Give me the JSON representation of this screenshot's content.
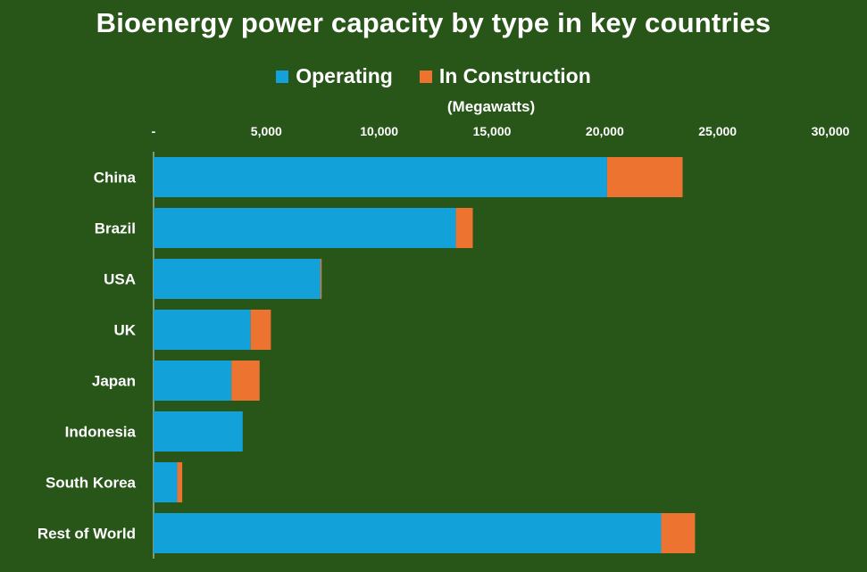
{
  "chart_data": {
    "type": "bar",
    "orientation": "horizontal",
    "stacked": true,
    "title": "Bioenergy power capacity by type in key countries",
    "unit_label": "(Megawatts)",
    "categories": [
      "China",
      "Brazil",
      "USA",
      "UK",
      "Japan",
      "Indonesia",
      "South Korea",
      "Rest of World"
    ],
    "series": [
      {
        "name": "Operating",
        "color": "#12A1D9",
        "values": [
          20100,
          13400,
          7400,
          4300,
          3450,
          3950,
          1050,
          22500
        ]
      },
      {
        "name": "In Construction",
        "color": "#EC7330",
        "values": [
          3350,
          750,
          50,
          900,
          1250,
          0,
          220,
          1500
        ]
      }
    ],
    "xlim": [
      0,
      30000
    ],
    "x_ticks": [
      0,
      5000,
      10000,
      15000,
      20000,
      25000,
      30000
    ],
    "x_tick_labels": [
      "-",
      "5,000",
      "10,000",
      "15,000",
      "20,000",
      "25,000",
      "30,000"
    ],
    "axis_position": "top",
    "legend_position": "top",
    "grid": false
  }
}
